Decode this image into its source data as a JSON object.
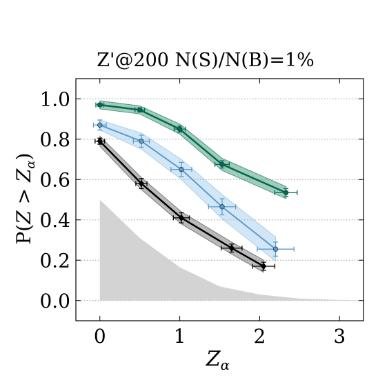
{
  "chart_data": {
    "type": "line",
    "title": "Z'@200 N(S)/N(B)=1%",
    "xlabel": "Z_α",
    "ylabel": "P(Z > Z_α)",
    "xlim": [
      -0.3,
      3.3
    ],
    "ylim": [
      -0.1,
      1.1
    ],
    "xticks": [
      "0",
      "1",
      "2",
      "3"
    ],
    "yticks": [
      "0.0",
      "0.2",
      "0.4",
      "0.6",
      "0.8",
      "1.0"
    ],
    "grid": "horizontal dotted",
    "series": [
      {
        "color": "#006b4e",
        "band_color": "#2e8b6a",
        "marker": "circle",
        "x": [
          0.0,
          0.5,
          1.0,
          1.53,
          2.33
        ],
        "y": [
          0.97,
          0.945,
          0.85,
          0.675,
          0.535
        ],
        "xerr": [
          0.05,
          0.06,
          0.07,
          0.09,
          0.14
        ],
        "yerr": [
          0.007,
          0.01,
          0.015,
          0.018,
          0.02
        ],
        "band": [
          0.02,
          0.02,
          0.025,
          0.03,
          0.03
        ]
      },
      {
        "color": "#5b9ccc",
        "band_color": "#9cc8ea",
        "marker": "circle",
        "x": [
          0.0,
          0.52,
          1.02,
          1.53,
          2.2
        ],
        "y": [
          0.87,
          0.79,
          0.65,
          0.465,
          0.255
        ],
        "xerr": [
          0.08,
          0.1,
          0.13,
          0.17,
          0.23
        ],
        "yerr": [
          0.025,
          0.03,
          0.035,
          0.04,
          0.035
        ],
        "band": [
          0.025,
          0.04,
          0.05,
          0.06,
          0.06
        ]
      },
      {
        "color": "#000000",
        "band_color": "#666666",
        "marker": "diamond",
        "x": [
          0.0,
          0.52,
          1.02,
          1.65,
          2.05
        ],
        "y": [
          0.79,
          0.58,
          0.41,
          0.26,
          0.17
        ],
        "xerr": [
          0.06,
          0.07,
          0.1,
          0.13,
          0.14
        ],
        "yerr": [
          0.015,
          0.025,
          0.025,
          0.02,
          0.02
        ],
        "band": [
          0.025,
          0.03,
          0.03,
          0.03,
          0.03
        ]
      }
    ],
    "background_area": {
      "color": "#d3d3d3",
      "x": [
        0.0,
        0.5,
        1.0,
        1.5,
        2.0,
        2.5,
        3.0,
        3.3
      ],
      "y": [
        0.5,
        0.31,
        0.165,
        0.07,
        0.03,
        0.01,
        0.003,
        0.001
      ]
    }
  }
}
